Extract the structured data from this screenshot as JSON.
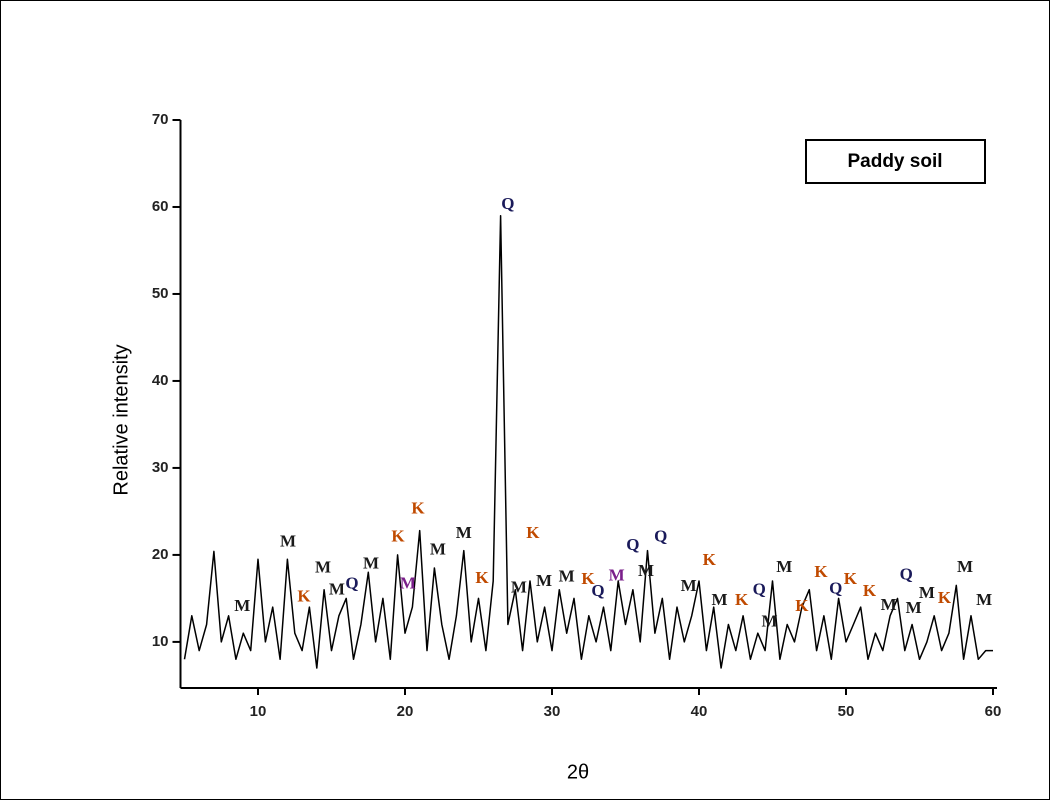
{
  "chart_data": {
    "type": "line",
    "title": null,
    "x_label": "2θ",
    "y_label": "Relative intensity",
    "x": [
      5,
      5.5,
      6,
      6.5,
      7,
      7.5,
      8,
      8.5,
      9,
      9.5,
      10,
      10.5,
      11,
      11.5,
      12,
      12.5,
      13,
      13.5,
      14,
      14.5,
      15,
      15.5,
      16,
      16.5,
      17,
      17.5,
      18,
      18.5,
      19,
      19.5,
      20,
      20.5,
      21,
      21.5,
      22,
      22.5,
      23,
      23.5,
      24,
      24.5,
      25,
      25.5,
      26,
      26.5,
      27,
      27.5,
      28,
      28.5,
      29,
      29.5,
      30,
      30.5,
      31,
      31.5,
      32,
      32.5,
      33,
      33.5,
      34,
      34.5,
      35,
      35.5,
      36,
      36.5,
      37,
      37.5,
      38,
      38.5,
      39,
      39.5,
      40,
      40.5,
      41,
      41.5,
      42,
      42.5,
      43,
      43.5,
      44,
      44.5,
      45,
      45.5,
      46,
      46.5,
      47,
      47.5,
      48,
      48.5,
      49,
      49.5,
      50,
      50.5,
      51,
      51.5,
      52,
      52.5,
      53,
      53.5,
      54,
      54.5,
      55,
      55.5,
      56,
      56.5,
      57,
      57.5,
      58,
      58.5,
      59,
      59.5,
      60
    ],
    "series": [
      {
        "name": "Paddy soil",
        "color": "#000000",
        "values": [
          8,
          13,
          9,
          12,
          20.4,
          10,
          13,
          8,
          11,
          9,
          19.5,
          10,
          14,
          8,
          19.5,
          11,
          9,
          14,
          7,
          16,
          9,
          13,
          15,
          8,
          12,
          18,
          10,
          15,
          8,
          20,
          11,
          14,
          22.8,
          9,
          18.5,
          12,
          8,
          13,
          20.5,
          10,
          15,
          9,
          17,
          59,
          12,
          16,
          9,
          17,
          10,
          14,
          9,
          16,
          11,
          15,
          8,
          13,
          10,
          14,
          9,
          17,
          12,
          16,
          10,
          20.5,
          11,
          15,
          8,
          14,
          10,
          13,
          17,
          9,
          14,
          7,
          12,
          9,
          13,
          8,
          11,
          9,
          17,
          8,
          12,
          10,
          14,
          16,
          9,
          13,
          8,
          15,
          10,
          12,
          14,
          8,
          11,
          9,
          13,
          15,
          9,
          12,
          8,
          10,
          13,
          9,
          11,
          16.5,
          8,
          13,
          8,
          9,
          9
        ]
      }
    ],
    "xlim": [
      5,
      60
    ],
    "xticks": [
      10,
      20,
      30,
      40,
      50,
      60
    ],
    "ylim": [
      4.7,
      70
    ],
    "yticks": [
      10,
      20,
      30,
      40,
      50,
      60,
      70
    ],
    "annotations": [
      {
        "text": "M",
        "x": 8.93,
        "y": 14.0,
        "color": "#1a1a1a"
      },
      {
        "text": "M",
        "x": 12.04,
        "y": 21.4,
        "color": "#1a1a1a"
      },
      {
        "text": "K",
        "x": 13.13,
        "y": 15.1,
        "color": "#c04a00"
      },
      {
        "text": "M",
        "x": 14.42,
        "y": 18.4,
        "color": "#1a1a1a"
      },
      {
        "text": "M",
        "x": 15.37,
        "y": 15.9,
        "color": "#1a1a1a"
      },
      {
        "text": "Q",
        "x": 16.39,
        "y": 16.6,
        "color": "#1a1a5a"
      },
      {
        "text": "M",
        "x": 17.69,
        "y": 18.9,
        "color": "#1a1a1a"
      },
      {
        "text": "K",
        "x": 19.52,
        "y": 22.0,
        "color": "#c04a00"
      },
      {
        "text": "M",
        "x": 20.2,
        "y": 16.6,
        "color": "#7a1f8a"
      },
      {
        "text": "K",
        "x": 20.88,
        "y": 25.2,
        "color": "#c04a00"
      },
      {
        "text": "M",
        "x": 22.24,
        "y": 20.5,
        "color": "#1a1a1a"
      },
      {
        "text": "M",
        "x": 24.0,
        "y": 22.4,
        "color": "#1a1a1a"
      },
      {
        "text": "K",
        "x": 25.24,
        "y": 17.2,
        "color": "#c04a00"
      },
      {
        "text": "Q",
        "x": 27.0,
        "y": 60.2,
        "color": "#1a1a5a"
      },
      {
        "text": "M",
        "x": 27.75,
        "y": 16.1,
        "color": "#1a1a1a"
      },
      {
        "text": "K",
        "x": 28.7,
        "y": 22.4,
        "color": "#c04a00"
      },
      {
        "text": "M",
        "x": 29.46,
        "y": 16.9,
        "color": "#1a1a1a"
      },
      {
        "text": "M",
        "x": 31.0,
        "y": 17.4,
        "color": "#1a1a1a"
      },
      {
        "text": "K",
        "x": 32.45,
        "y": 17.1,
        "color": "#c04a00"
      },
      {
        "text": "Q",
        "x": 33.13,
        "y": 15.7,
        "color": "#1a1a5a"
      },
      {
        "text": "M",
        "x": 34.4,
        "y": 17.5,
        "color": "#7a1f8a"
      },
      {
        "text": "Q",
        "x": 35.5,
        "y": 21.0,
        "color": "#1a1a5a"
      },
      {
        "text": "M",
        "x": 36.4,
        "y": 18.0,
        "color": "#1a1a1a"
      },
      {
        "text": "Q",
        "x": 37.4,
        "y": 22.0,
        "color": "#1a1a5a"
      },
      {
        "text": "M",
        "x": 39.3,
        "y": 16.3,
        "color": "#1a1a1a"
      },
      {
        "text": "K",
        "x": 40.7,
        "y": 19.3,
        "color": "#c04a00"
      },
      {
        "text": "M",
        "x": 41.4,
        "y": 14.7,
        "color": "#1a1a1a"
      },
      {
        "text": "K",
        "x": 42.9,
        "y": 14.7,
        "color": "#c04a00"
      },
      {
        "text": "Q",
        "x": 44.1,
        "y": 15.9,
        "color": "#1a1a5a"
      },
      {
        "text": "M",
        "x": 44.8,
        "y": 12.2,
        "color": "#1a1a1a"
      },
      {
        "text": "M",
        "x": 45.8,
        "y": 18.5,
        "color": "#1a1a1a"
      },
      {
        "text": "K",
        "x": 47.0,
        "y": 14.0,
        "color": "#c04a00"
      },
      {
        "text": "K",
        "x": 48.3,
        "y": 17.9,
        "color": "#c04a00"
      },
      {
        "text": "Q",
        "x": 49.3,
        "y": 16.0,
        "color": "#1a1a5a"
      },
      {
        "text": "K",
        "x": 50.3,
        "y": 17.1,
        "color": "#c04a00"
      },
      {
        "text": "K",
        "x": 51.6,
        "y": 15.7,
        "color": "#c04a00"
      },
      {
        "text": "M",
        "x": 52.9,
        "y": 14.1,
        "color": "#1a1a1a"
      },
      {
        "text": "Q",
        "x": 54.1,
        "y": 17.6,
        "color": "#1a1a5a"
      },
      {
        "text": "M",
        "x": 54.6,
        "y": 13.8,
        "color": "#1a1a1a"
      },
      {
        "text": "M",
        "x": 55.5,
        "y": 15.5,
        "color": "#1a1a1a"
      },
      {
        "text": "K",
        "x": 56.7,
        "y": 14.9,
        "color": "#c04a00"
      },
      {
        "text": "M",
        "x": 58.1,
        "y": 18.5,
        "color": "#1a1a1a"
      },
      {
        "text": "M",
        "x": 59.4,
        "y": 14.7,
        "color": "#1a1a1a"
      }
    ]
  }
}
